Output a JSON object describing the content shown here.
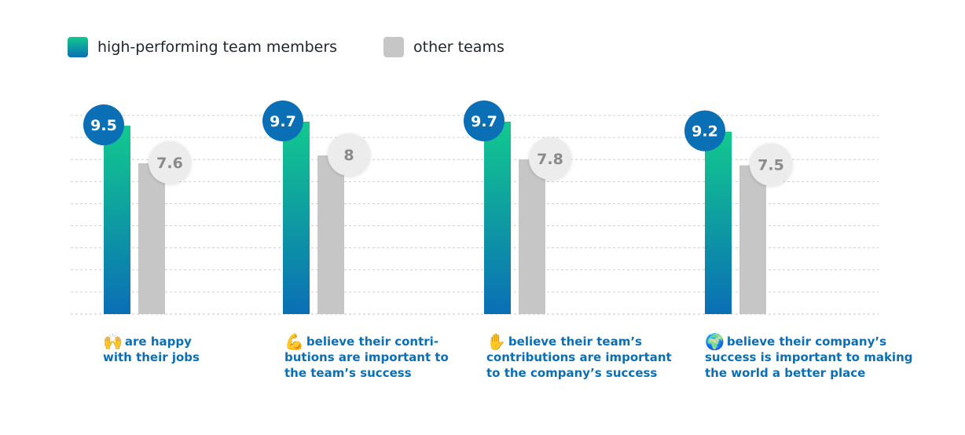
{
  "legend": {
    "high_performing": "high-performing team members",
    "other": "other teams"
  },
  "colors": {
    "hp_top": "#12c98e",
    "hp_bottom": "#0a6fb5",
    "hp_badge": "#0b6fb5",
    "other_bar": "#c6c6c6",
    "other_badge": "#ececec",
    "other_badge_text": "#8a8a8a",
    "caption": "#0b6fb5",
    "grid": "#cfcfcf"
  },
  "chart_data": {
    "type": "bar",
    "categories": [
      "are happy with their jobs",
      "believe their contributions are important to the team’s success",
      "believe their team’s contributions are important to the company’s success",
      "believe their company’s success is important to making the world a better place"
    ],
    "series": [
      {
        "name": "high-performing team members",
        "values": [
          9.5,
          9.7,
          9.7,
          9.2
        ]
      },
      {
        "name": "other teams",
        "values": [
          7.6,
          8,
          7.8,
          7.5
        ]
      }
    ],
    "value_labels": {
      "high_performing": [
        "9.5",
        "9.7",
        "9.7",
        "9.2"
      ],
      "other": [
        "7.6",
        "8",
        "7.8",
        "7.5"
      ]
    },
    "ylim": [
      0,
      10
    ],
    "grid": true,
    "grid_style": "dotted",
    "legend_position": "top-left"
  },
  "captions": [
    {
      "icon": "🙌",
      "icon_name": "raised-hands-icon",
      "line1": "are happy",
      "line2": "with their jobs",
      "line3": ""
    },
    {
      "icon": "💪",
      "icon_name": "flexed-biceps-icon",
      "line1": "believe their contri-",
      "line2": "butions are important to",
      "line3": "the team’s success"
    },
    {
      "icon": "✋",
      "icon_name": "raised-hand-icon",
      "line1": "believe their team’s",
      "line2": "contributions are important",
      "line3": "to the company’s success"
    },
    {
      "icon": "🌍",
      "icon_name": "globe-icon",
      "line1": "believe their company’s",
      "line2": "success is important to making",
      "line3": "the world a better place"
    }
  ]
}
